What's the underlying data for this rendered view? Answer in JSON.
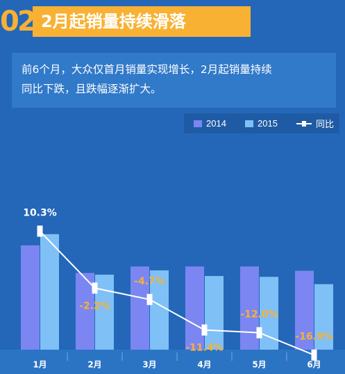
{
  "header": {
    "number": "02",
    "title": "2月起销量持续滑落"
  },
  "summary": {
    "line1": "前6个月，大众仅首月销量实现增长，2月起销量持续",
    "line2": "同比下跌，且跌幅逐渐扩大。"
  },
  "legend": {
    "series_2014": "2014",
    "series_2015": "2015",
    "line": "同比"
  },
  "colors": {
    "background": "#2467b8",
    "bar_2014": "#7b86f2",
    "bar_2015": "#7fc0f7",
    "line": "#ffffff",
    "negative_label": "#f8b133",
    "positive_label": "#ffffff",
    "accent": "#f8b133"
  },
  "chart_data": {
    "type": "bar",
    "categories": [
      "1月",
      "2月",
      "3月",
      "4月",
      "5月",
      "6月"
    ],
    "series": [
      {
        "name": "2014",
        "values": [
          24.2,
          17.8,
          19.3,
          19.3,
          19.3,
          18.3
        ]
      },
      {
        "name": "2015",
        "values": [
          26.8,
          17.4,
          18.4,
          17.1,
          16.9,
          15.2
        ]
      }
    ],
    "line": {
      "name": "同比",
      "values": [
        10.3,
        -2.2,
        -4.7,
        -11.4,
        -12.0,
        -16.9
      ],
      "labels": [
        "10.3%",
        "-2.2%",
        "-4.7%",
        "-11.4%",
        "-12.0%",
        "-16.9%"
      ]
    }
  }
}
